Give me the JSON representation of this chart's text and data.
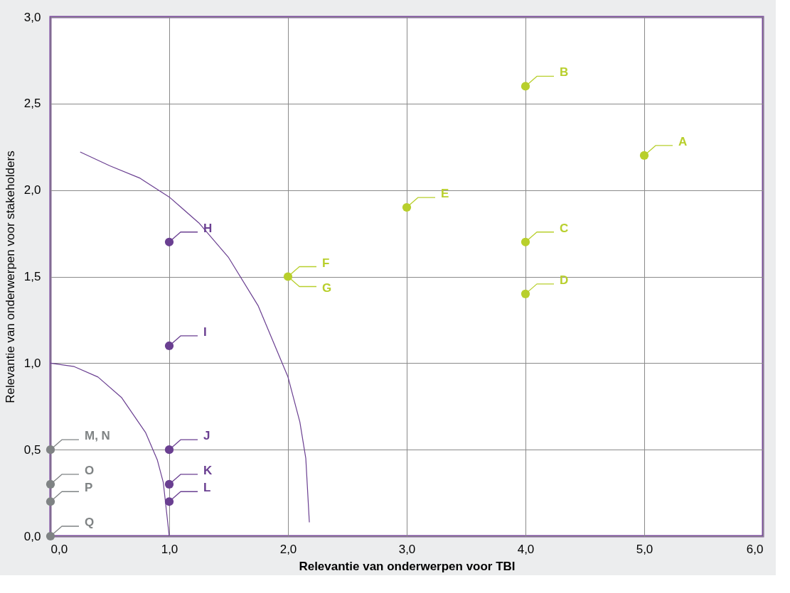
{
  "chart_data": {
    "type": "scatter",
    "xlabel": "Relevantie van onderwerpen voor TBI",
    "ylabel": "Relevantie van onderwerpen voor stakeholders",
    "xlim": [
      0,
      6
    ],
    "ylim": [
      0,
      3
    ],
    "xticks": [
      {
        "value": 0,
        "label": "0,0"
      },
      {
        "value": 1,
        "label": "1,0"
      },
      {
        "value": 2,
        "label": "2,0"
      },
      {
        "value": 3,
        "label": "3,0"
      },
      {
        "value": 4,
        "label": "4,0"
      },
      {
        "value": 5,
        "label": "5,0"
      },
      {
        "value": 6,
        "label": "6,0"
      }
    ],
    "yticks": [
      {
        "value": 0,
        "label": "0,0"
      },
      {
        "value": 0.5,
        "label": "0,5"
      },
      {
        "value": 1,
        "label": "1,0"
      },
      {
        "value": 1.5,
        "label": "1,5"
      },
      {
        "value": 2,
        "label": "2,0"
      },
      {
        "value": 2.5,
        "label": "2,5"
      },
      {
        "value": 3,
        "label": "3,0"
      }
    ],
    "grid": true,
    "marker": "circle",
    "series": [
      {
        "type": "line",
        "marker": "none",
        "line_style": "solid",
        "color": "#6a3f91",
        "x": [
          0.25,
          0.5,
          0.75,
          1.0,
          1.25,
          1.5,
          1.75,
          2.0,
          2.1,
          2.15,
          2.18
        ],
        "values": [
          2.22,
          2.14,
          2.07,
          1.96,
          1.81,
          1.61,
          1.33,
          0.92,
          0.66,
          0.45,
          0.08
        ]
      },
      {
        "type": "line",
        "marker": "none",
        "line_style": "solid",
        "color": "#6a3f91",
        "x": [
          0,
          0.2,
          0.4,
          0.6,
          0.8,
          0.9,
          0.95,
          1.0
        ],
        "values": [
          1.0,
          0.98,
          0.92,
          0.8,
          0.6,
          0.44,
          0.31,
          0
        ]
      },
      {
        "color": "#b8cf2c",
        "x": [
          5,
          4,
          4,
          4,
          3,
          2
        ],
        "values": [
          2.2,
          2.6,
          1.7,
          1.4,
          1.9,
          1.5
        ]
      },
      {
        "color": "#6a3f91",
        "x": [
          1,
          1,
          1,
          1,
          1
        ],
        "values": [
          1.7,
          1.1,
          0.5,
          0.3,
          0.2
        ]
      },
      {
        "color": "#7f8384",
        "x": [
          0,
          0,
          0,
          0
        ],
        "values": [
          0.5,
          0.3,
          0.2,
          0
        ]
      }
    ],
    "annotations": [
      {
        "text": "A",
        "x": 5,
        "y": 2.2
      },
      {
        "text": "B",
        "x": 4,
        "y": 2.6
      },
      {
        "text": "C",
        "x": 4,
        "y": 1.7
      },
      {
        "text": "D",
        "x": 4,
        "y": 1.4
      },
      {
        "text": "E",
        "x": 3,
        "y": 1.9
      },
      {
        "text": "F",
        "x": 2,
        "y": 1.5
      },
      {
        "text": "G",
        "x": 2,
        "y": 1.5
      },
      {
        "text": "H",
        "x": 1,
        "y": 1.7
      },
      {
        "text": "I",
        "x": 1,
        "y": 1.1
      },
      {
        "text": "J",
        "x": 1,
        "y": 0.5
      },
      {
        "text": "K",
        "x": 1,
        "y": 0.3
      },
      {
        "text": "L",
        "x": 1,
        "y": 0.2
      },
      {
        "text": "M, N",
        "x": 0,
        "y": 0.5
      },
      {
        "text": "O",
        "x": 0,
        "y": 0.3
      },
      {
        "text": "P",
        "x": 0,
        "y": 0.2
      },
      {
        "text": "Q",
        "x": 0,
        "y": 0
      }
    ]
  }
}
